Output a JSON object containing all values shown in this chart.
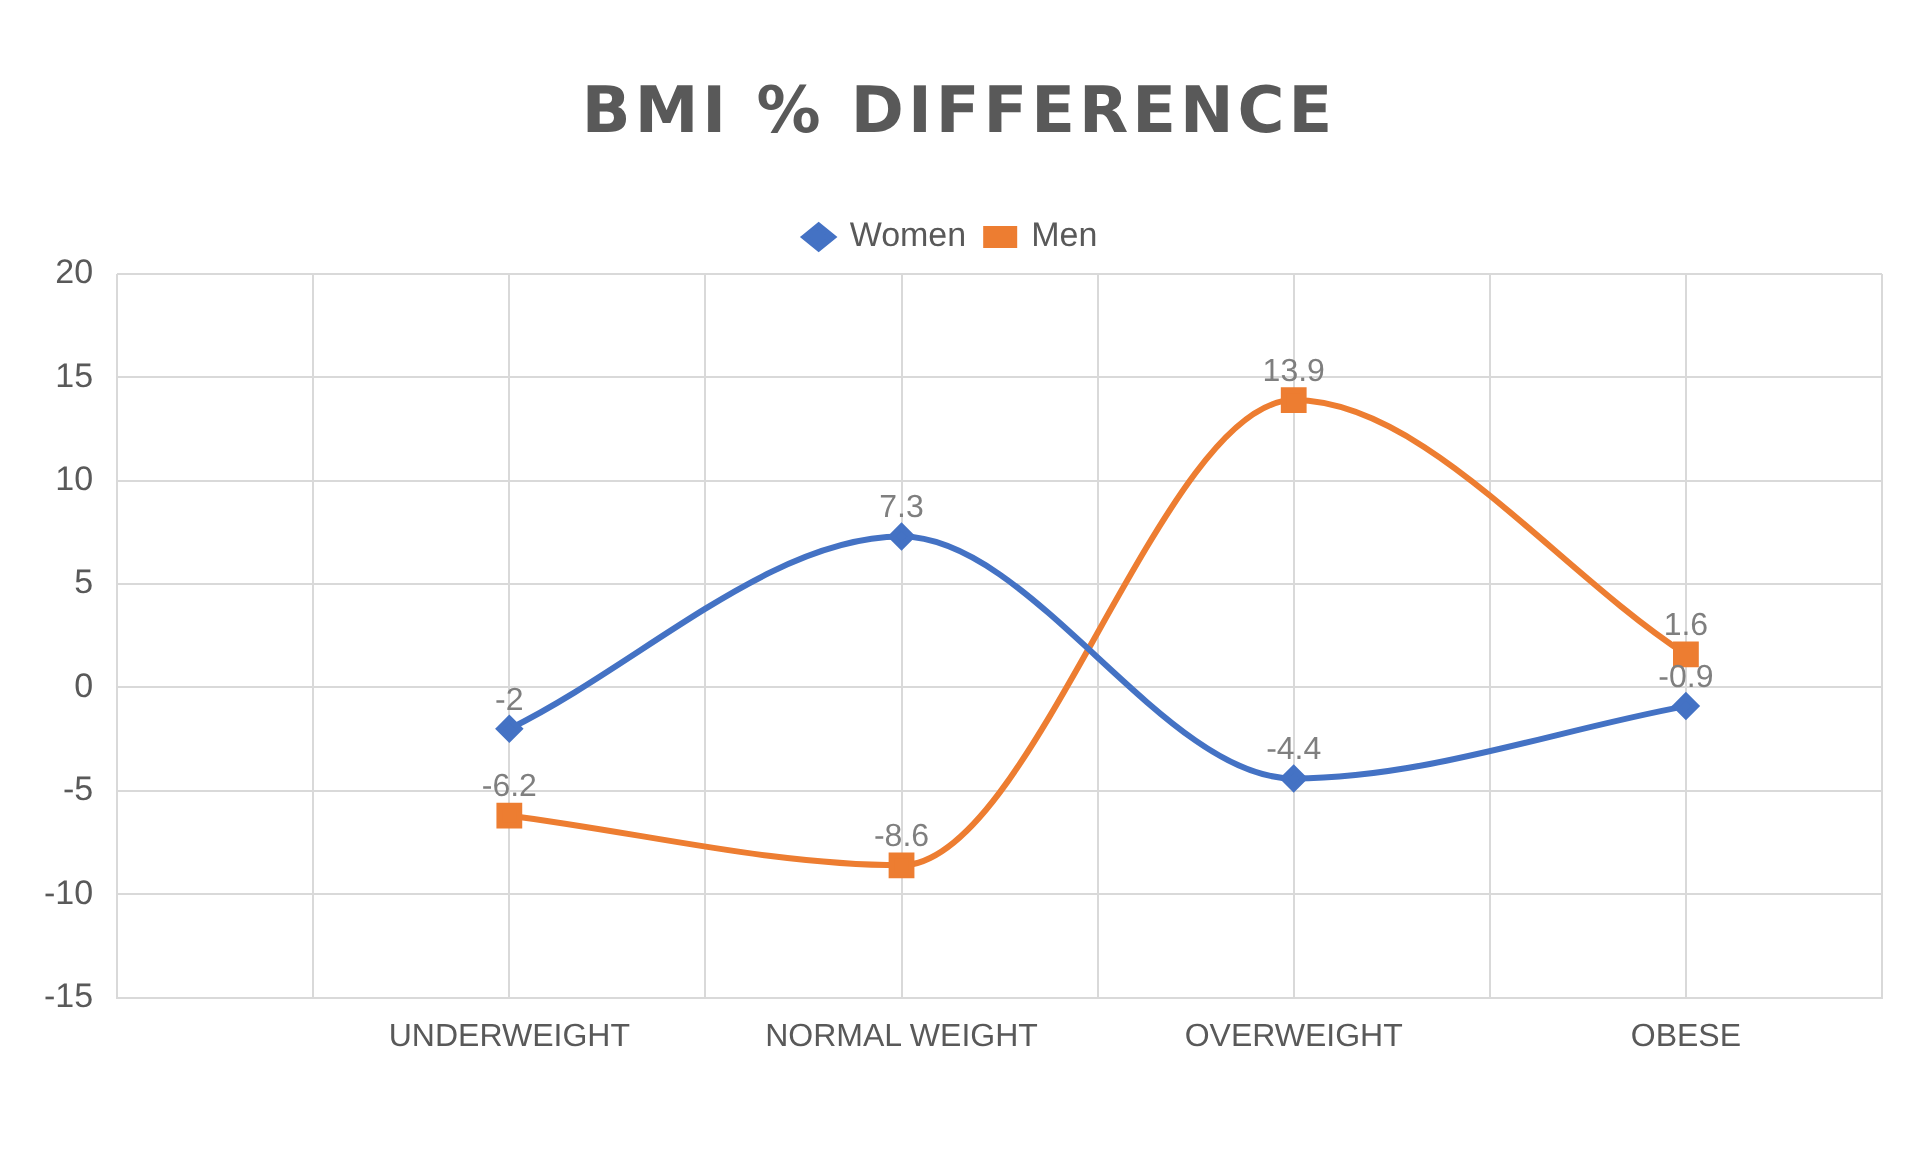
{
  "chart_data": {
    "type": "line",
    "title": "BMI % DIFFERENCE",
    "categories": [
      "UNDERWEIGHT",
      "NORMAL WEIGHT",
      "OVERWEIGHT",
      "OBESE"
    ],
    "series": [
      {
        "name": "Women",
        "color": "#4472c4",
        "marker": "diamond",
        "values": [
          -2,
          7.3,
          -4.4,
          -0.9
        ]
      },
      {
        "name": "Men",
        "color": "#ed7d31",
        "marker": "square",
        "values": [
          -6.2,
          -8.6,
          13.9,
          1.6
        ]
      }
    ],
    "ylim": [
      -15,
      20
    ],
    "yticks": [
      -15,
      -10,
      -5,
      0,
      5,
      10,
      15,
      20
    ],
    "grid": true,
    "legend": "top",
    "data_labels": true
  }
}
